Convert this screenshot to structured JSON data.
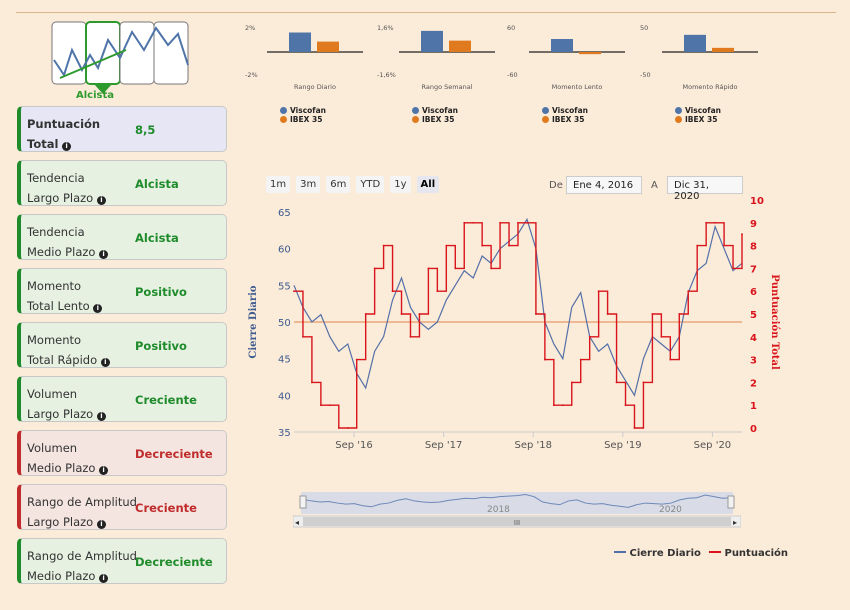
{
  "logo": {
    "label": "Alcista"
  },
  "cards": [
    {
      "line1": "Puntuación",
      "line2": "Total",
      "value": "8,5",
      "style": "blue"
    },
    {
      "line1": "Tendencia",
      "line2": "Largo Plazo",
      "value": "Alcista",
      "style": "green"
    },
    {
      "line1": "Tendencia",
      "line2": "Medio Plazo",
      "value": "Alcista",
      "style": "green"
    },
    {
      "line1": "Momento",
      "line2": "Total Lento",
      "value": "Positivo",
      "style": "green"
    },
    {
      "line1": "Momento",
      "line2": "Total Rápido",
      "value": "Positivo",
      "style": "green"
    },
    {
      "line1": "Volumen",
      "line2": "Largo Plazo",
      "value": "Creciente",
      "style": "green"
    },
    {
      "line1": "Volumen",
      "line2": "Medio Plazo",
      "value": "Decreciente",
      "style": "red"
    },
    {
      "line1": "Rango de Amplitud",
      "line2": "Largo Plazo",
      "value": "Creciente",
      "style": "red"
    },
    {
      "line1": "Rango de Amplitud",
      "line2": "Medio Plazo",
      "value": "Decreciente",
      "style": "green"
    }
  ],
  "mini_charts": [
    {
      "title": "Rango Diario",
      "top": "2%",
      "bottom": "-2%",
      "viscofan": 1.5,
      "ibex": 0.8,
      "max": 2
    },
    {
      "title": "Rango Semanal",
      "top": "1,6%",
      "bottom": "-1,6%",
      "viscofan": 1.3,
      "ibex": 0.7,
      "max": 1.6
    },
    {
      "title": "Momento Lento",
      "top": "60",
      "bottom": "-60",
      "viscofan": 30,
      "ibex": -5,
      "max": 60
    },
    {
      "title": "Momento Rápido",
      "top": "50",
      "bottom": "-50",
      "viscofan": 33,
      "ibex": 8,
      "max": 50
    }
  ],
  "mini_legend": {
    "a": "Viscofan",
    "b": "IBEX 35"
  },
  "colors": {
    "viscofan": "#4f74a8",
    "ibex": "#e07a1f",
    "price": "#5470a8",
    "score": "#d9141b",
    "accent_green": "#1f8b2a",
    "accent_red": "#c02b2b"
  },
  "range_buttons": [
    "1m",
    "3m",
    "6m",
    "YTD",
    "1y",
    "All"
  ],
  "range_selected": "All",
  "date_from_label": "De",
  "date_from": "Ene 4, 2016",
  "date_to_label": "A",
  "date_to": "Dic 31, 2020",
  "navigator_labels": [
    "2018",
    "2020"
  ],
  "navigator_handle": "III",
  "chart_data": {
    "type": "line",
    "ylabel": "Cierre Diario",
    "ylabel2": "Puntuación Total",
    "ylim": [
      35,
      65
    ],
    "ylim2": [
      0,
      10
    ],
    "yticks": [
      35,
      40,
      45,
      50,
      55,
      60,
      65
    ],
    "yticks2": [
      0,
      1,
      2,
      3,
      4,
      5,
      6,
      7,
      8,
      9,
      10
    ],
    "xticks": [
      "Sep '16",
      "Sep '17",
      "Sep '18",
      "Sep '19",
      "Sep '20"
    ],
    "xlim": [
      2016.0,
      2021.0
    ],
    "xtick_positions": [
      2016.67,
      2017.67,
      2018.67,
      2019.67,
      2020.67
    ],
    "reference_line": 50,
    "series": [
      {
        "name": "Cierre Diario",
        "x": [
          2016.0,
          2016.1,
          2016.2,
          2016.3,
          2016.4,
          2016.5,
          2016.6,
          2016.7,
          2016.8,
          2016.9,
          2017.0,
          2017.1,
          2017.2,
          2017.3,
          2017.4,
          2017.5,
          2017.6,
          2017.7,
          2017.8,
          2017.9,
          2018.0,
          2018.1,
          2018.2,
          2018.3,
          2018.4,
          2018.5,
          2018.6,
          2018.7,
          2018.8,
          2018.9,
          2019.0,
          2019.1,
          2019.2,
          2019.3,
          2019.4,
          2019.5,
          2019.6,
          2019.7,
          2019.8,
          2019.9,
          2020.0,
          2020.1,
          2020.2,
          2020.3,
          2020.4,
          2020.5,
          2020.6,
          2020.7,
          2020.8,
          2020.9,
          2021.0
        ],
        "values": [
          55,
          52,
          50,
          51,
          48,
          46,
          47,
          43,
          41,
          46,
          48,
          53,
          56,
          52,
          50,
          49,
          50,
          53,
          55,
          57,
          56,
          59,
          58,
          60,
          61,
          62,
          64,
          60,
          50,
          47,
          45,
          52,
          54,
          48,
          46,
          47,
          44,
          42,
          40,
          45,
          48,
          47,
          46,
          48,
          54,
          57,
          58,
          63,
          60,
          57,
          58
        ]
      },
      {
        "name": "Puntuación",
        "x": [
          2016.0,
          2016.1,
          2016.2,
          2016.3,
          2016.4,
          2016.5,
          2016.6,
          2016.7,
          2016.8,
          2016.9,
          2017.0,
          2017.1,
          2017.2,
          2017.3,
          2017.4,
          2017.5,
          2017.6,
          2017.7,
          2017.8,
          2017.9,
          2018.0,
          2018.1,
          2018.2,
          2018.3,
          2018.4,
          2018.5,
          2018.6,
          2018.7,
          2018.8,
          2018.9,
          2019.0,
          2019.1,
          2019.2,
          2019.3,
          2019.4,
          2019.5,
          2019.6,
          2019.7,
          2019.8,
          2019.9,
          2020.0,
          2020.1,
          2020.2,
          2020.3,
          2020.4,
          2020.5,
          2020.6,
          2020.7,
          2020.8,
          2020.9,
          2021.0
        ],
        "values": [
          6,
          4,
          2,
          1,
          1,
          0,
          0,
          3,
          5,
          7,
          8,
          6,
          5,
          4,
          5,
          7,
          6,
          8,
          7,
          9,
          9,
          8,
          7,
          9,
          8,
          9,
          9,
          5,
          3,
          1,
          1,
          2,
          3,
          4,
          6,
          5,
          2,
          1,
          0,
          2,
          5,
          4,
          3,
          5,
          6,
          8,
          9,
          9,
          8,
          7,
          8.5
        ]
      }
    ]
  },
  "bottom_legend": {
    "price": "Cierre Diario",
    "score": "Puntuación"
  }
}
